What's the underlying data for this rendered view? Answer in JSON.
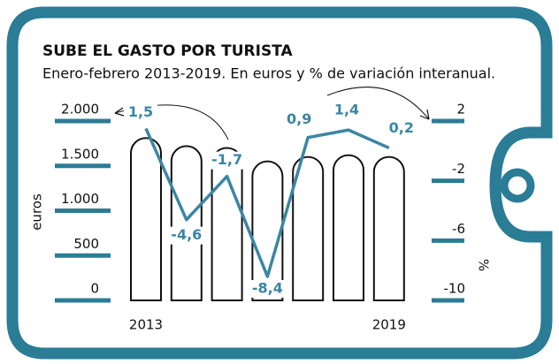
{
  "chart_data": {
    "type": "bar",
    "title": "SUBE EL GASTO POR TURISTA",
    "subtitle": "Enero-febrero 2013-2019. En euros y % de variación interanual.",
    "ylabel": "euros",
    "y2label": "%",
    "categories": [
      "2013",
      null,
      null,
      null,
      null,
      null,
      "2019"
    ],
    "ylim": [
      0,
      2000
    ],
    "yticks": [
      0,
      500,
      {
        "value": 1000,
        "label": "1.000"
      },
      {
        "value": 1500,
        "label": "1.500"
      },
      {
        "value": 2000,
        "label": "2.000"
      }
    ],
    "y2lim": [
      -10,
      2
    ],
    "y2ticks": [
      -10,
      -6,
      -2,
      2
    ],
    "tick_color": "#2b7c95",
    "series": [
      {
        "type": "bar",
        "color": "#111111",
        "values": [
          1810,
          1720,
          1700,
          1550,
          1600,
          1620,
          1600
        ]
      },
      {
        "type": "line",
        "axis": "y2",
        "color": "#3a86a3",
        "values": [
          1.5,
          -4.6,
          -1.7,
          -8.4,
          0.9,
          1.4,
          0.2
        ],
        "value_labels": [
          "1,5",
          "-4,6",
          "-1,7",
          "-8,4",
          "0,9",
          "1,4",
          "0,2"
        ]
      }
    ]
  }
}
